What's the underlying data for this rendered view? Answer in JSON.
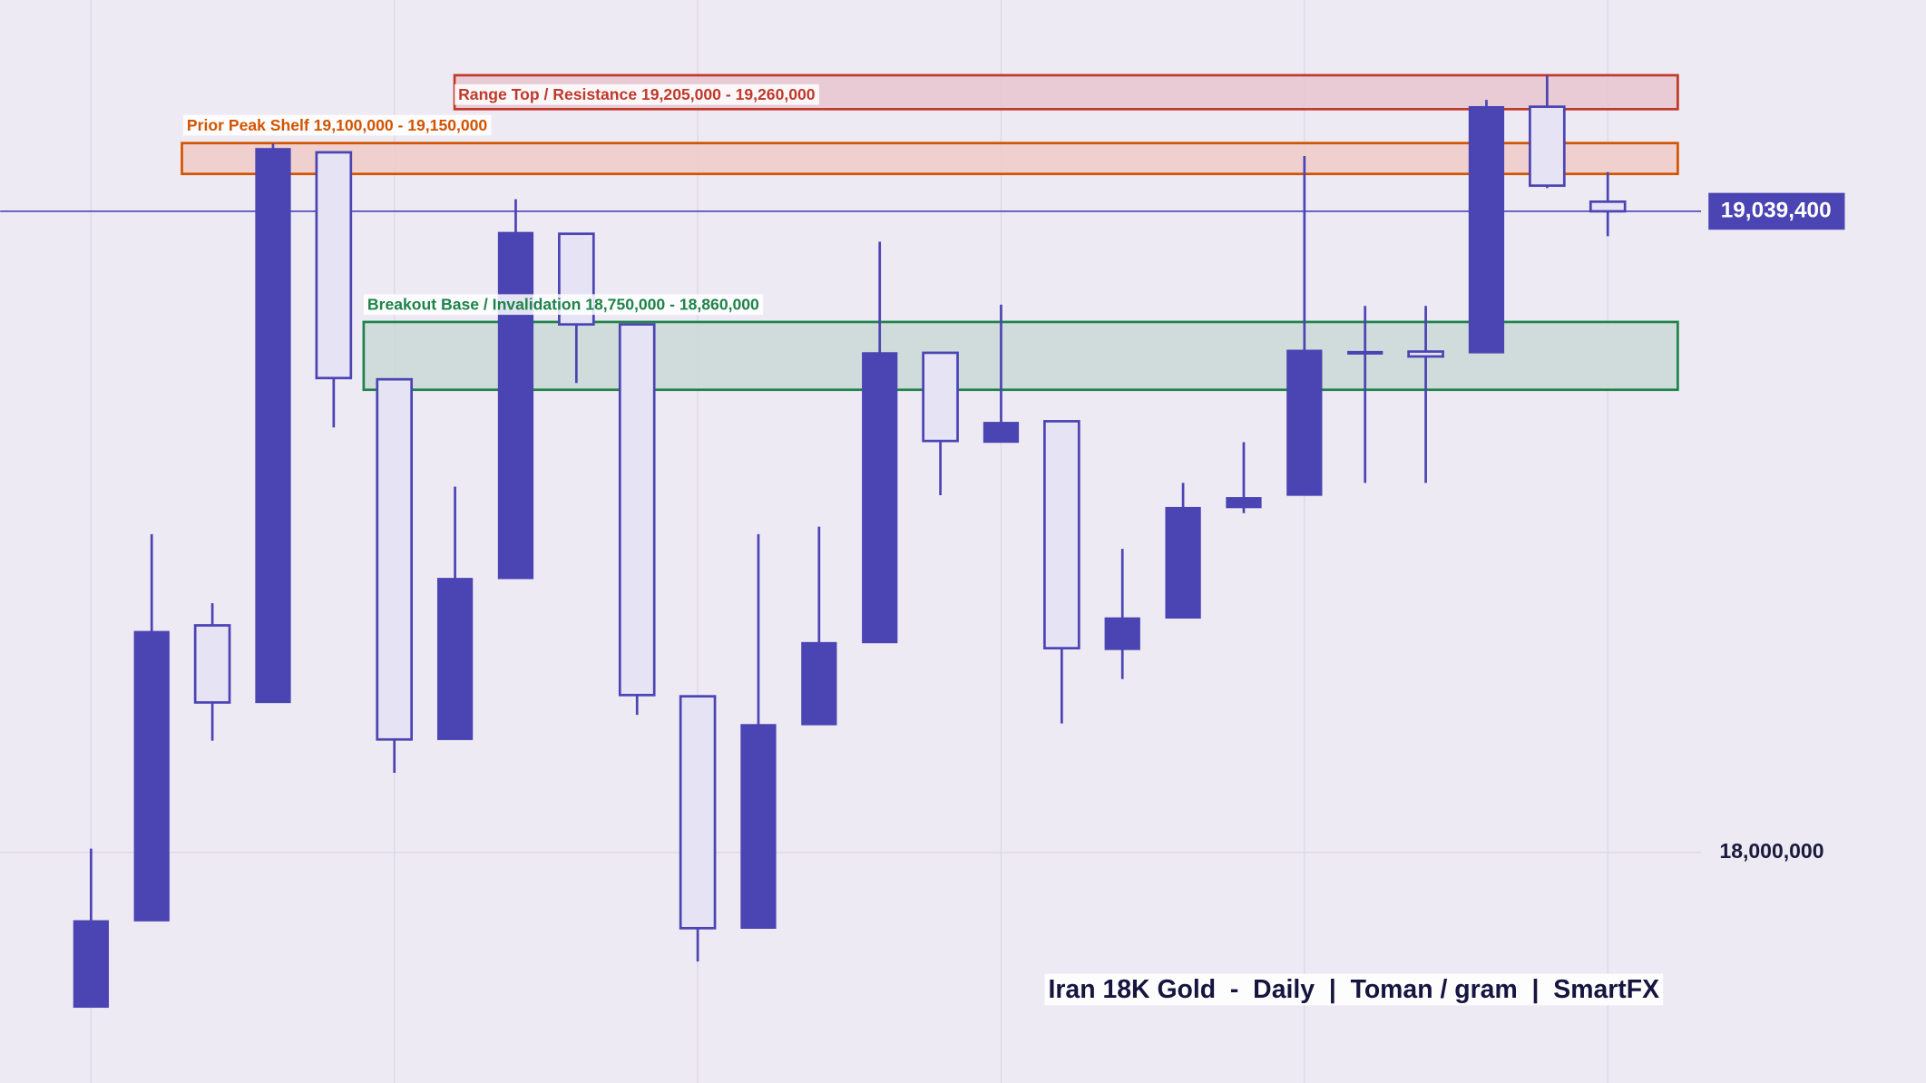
{
  "chart_data": {
    "type": "candlestick",
    "title": "Iran 18K Gold  -  Daily  |  Toman / gram  |  SmartFX",
    "categories": [
      null,
      null,
      null,
      null,
      null,
      null,
      null,
      null,
      null,
      null,
      null,
      null,
      null,
      null,
      null,
      null,
      null,
      null,
      null,
      null,
      null,
      null,
      null,
      null,
      null,
      null
    ],
    "open": [
      17749000,
      17889000,
      18368000,
      18243000,
      19135000,
      18767000,
      18183000,
      18444000,
      19003000,
      18856000,
      18253000,
      17877000,
      18207000,
      18340000,
      18810000,
      18665000,
      18699000,
      18329000,
      18380000,
      18559000,
      18579000,
      18810000,
      18812000,
      18810000,
      19209000,
      19055000
    ],
    "high": [
      18006000,
      18516000,
      18404000,
      19149000,
      19135000,
      18767000,
      18593000,
      19059000,
      19003000,
      18856000,
      18253000,
      18516000,
      18528000,
      18990000,
      18810000,
      18888000,
      18699000,
      18492000,
      18599000,
      18665000,
      19129000,
      18886000,
      18886000,
      19220000,
      19260000,
      19103000
    ],
    "low": [
      17749000,
      17889000,
      18181000,
      18243000,
      18689000,
      18129000,
      18183000,
      18444000,
      18761000,
      18223000,
      17823000,
      17877000,
      18207000,
      18340000,
      18579000,
      18665000,
      18209000,
      18281000,
      18380000,
      18550000,
      18579000,
      18599000,
      18599000,
      18810000,
      19077000,
      18999000
    ],
    "close": [
      17889000,
      18358000,
      18243000,
      19141000,
      18769000,
      18183000,
      18444000,
      19005000,
      18856000,
      18255000,
      17877000,
      18207000,
      18340000,
      18810000,
      18667000,
      18697000,
      18331000,
      18380000,
      18559000,
      18575000,
      18814000,
      18812000,
      18804000,
      19209000,
      19081000,
      19039400
    ],
    "up_color": "#4b44b3",
    "down_color": "#e6e3f5",
    "ylim": [
      17626000,
      19382000
    ],
    "yticks": [
      {
        "value": 18000000,
        "label": "18,000,000"
      }
    ],
    "last_price": {
      "value": 19039400,
      "label": "19,039,400"
    },
    "zones": [
      {
        "label": "Range Top / Resistance  19,205,000 - 19,260,000",
        "range": [
          19205000,
          19260000
        ],
        "color": "#c0392b",
        "fill": "#e8c6d0"
      },
      {
        "label": "Prior Peak Shelf  19,100,000 - 19,150,000",
        "range": [
          19100000,
          19150000
        ],
        "color": "#d35400",
        "fill": "#efcbc8"
      },
      {
        "label": "Breakout Base / Invalidation  18,750,000 - 18,860,000",
        "range": [
          18750000,
          18860000
        ],
        "color": "#1e8449",
        "fill": "#cad9d6"
      }
    ]
  }
}
